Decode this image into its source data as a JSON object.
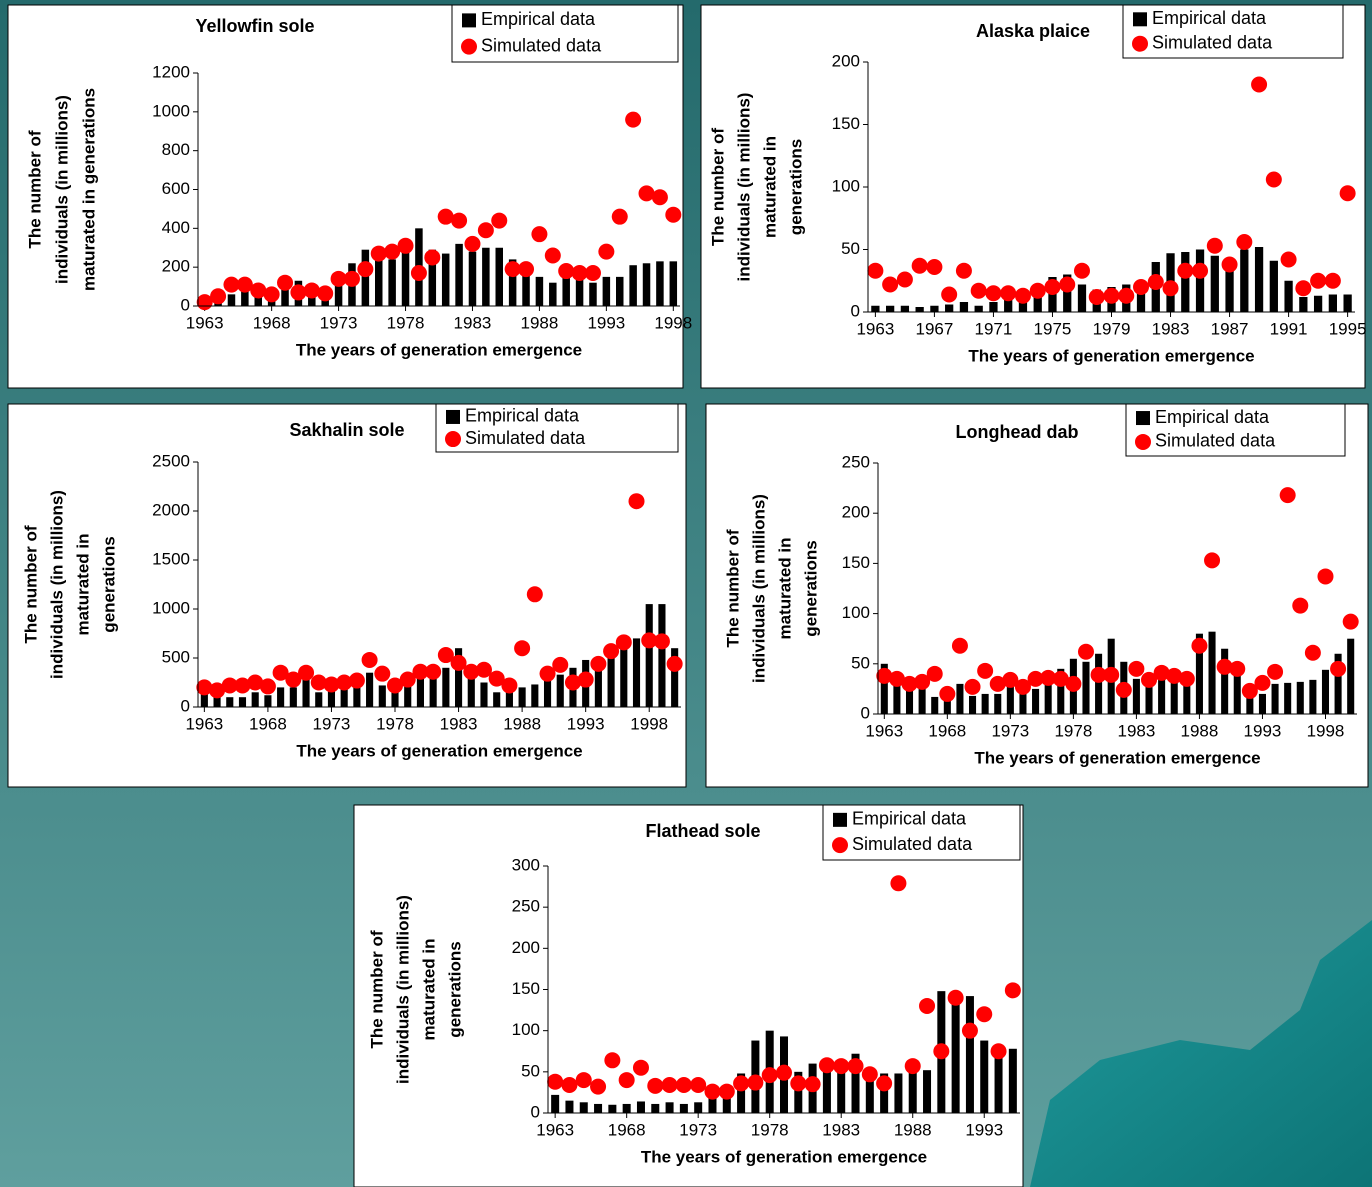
{
  "chart_data": [
    {
      "type": "combo",
      "title": "Yellowfin sole",
      "xlabel": "The years of generation emergence",
      "ylabel": [
        "The number of",
        "individuals (in millions)",
        "maturated in generations"
      ],
      "x": [
        1963,
        1964,
        1965,
        1966,
        1967,
        1968,
        1969,
        1970,
        1971,
        1972,
        1973,
        1974,
        1975,
        1976,
        1977,
        1978,
        1979,
        1980,
        1981,
        1982,
        1983,
        1984,
        1985,
        1986,
        1987,
        1988,
        1989,
        1990,
        1991,
        1992,
        1993,
        1994,
        1995,
        1996,
        1997,
        1998
      ],
      "series": [
        {
          "name": "Empirical data",
          "color": "#000000",
          "mark": "bar",
          "values": [
            20,
            40,
            60,
            80,
            50,
            50,
            90,
            130,
            90,
            70,
            120,
            220,
            290,
            280,
            240,
            300,
            400,
            290,
            270,
            320,
            280,
            300,
            300,
            240,
            200,
            150,
            120,
            150,
            160,
            120,
            150,
            150,
            210,
            220,
            230,
            230
          ]
        },
        {
          "name": "Simulated data",
          "color": "#ff0000",
          "mark": "dot",
          "values": [
            20,
            50,
            110,
            110,
            80,
            60,
            120,
            70,
            80,
            65,
            140,
            140,
            190,
            270,
            280,
            310,
            170,
            250,
            460,
            440,
            320,
            390,
            440,
            190,
            190,
            370,
            260,
            180,
            170,
            170,
            280,
            460,
            960,
            580,
            560,
            470
          ]
        }
      ],
      "xlim": [
        1962.5,
        1998.5
      ],
      "xticks": [
        1963,
        1968,
        1973,
        1978,
        1983,
        1988,
        1993,
        1998
      ],
      "ylim": [
        0,
        1200
      ],
      "yticks": [
        0,
        200,
        400,
        600,
        800,
        1000,
        1200
      ],
      "legend": "top-right"
    },
    {
      "type": "combo",
      "title": "Alaska plaice",
      "xlabel": "The years of generation emergence",
      "ylabel": [
        "The number of",
        "individuals (in millions)",
        "maturated in",
        "generations"
      ],
      "x": [
        1963,
        1964,
        1965,
        1966,
        1967,
        1968,
        1969,
        1970,
        1971,
        1972,
        1973,
        1974,
        1975,
        1976,
        1977,
        1978,
        1979,
        1980,
        1981,
        1982,
        1983,
        1984,
        1985,
        1986,
        1987,
        1988,
        1989,
        1990,
        1991,
        1992,
        1993,
        1994,
        1995
      ],
      "series": [
        {
          "name": "Empirical data",
          "color": "#000000",
          "mark": "bar",
          "values": [
            5,
            5,
            5,
            4,
            5,
            6,
            8,
            5,
            8,
            10,
            12,
            20,
            28,
            30,
            22,
            18,
            20,
            22,
            25,
            40,
            47,
            48,
            50,
            45,
            40,
            50,
            52,
            41,
            25,
            12,
            13,
            14,
            14
          ]
        },
        {
          "name": "Simulated data",
          "color": "#ff0000",
          "mark": "dot",
          "values": [
            33,
            22,
            26,
            37,
            36,
            14,
            33,
            17,
            15,
            15,
            13,
            17,
            20,
            22,
            33,
            12,
            13,
            13,
            20,
            24,
            19,
            33,
            33,
            53,
            38,
            56,
            182,
            106,
            42,
            19,
            25,
            25,
            95
          ]
        }
      ],
      "xlim": [
        1962.5,
        1995.5
      ],
      "xticks": [
        1963,
        1967,
        1971,
        1975,
        1979,
        1983,
        1987,
        1991,
        1995
      ],
      "ylim": [
        0,
        200
      ],
      "yticks": [
        0,
        50,
        100,
        150,
        200
      ],
      "legend": "top-right"
    },
    {
      "type": "combo",
      "title": "Sakhalin sole",
      "xlabel": "The years of generation emergence",
      "ylabel": [
        "The number of",
        "individuals (in millions)",
        "maturated in",
        "generations"
      ],
      "x": [
        1963,
        1964,
        1965,
        1966,
        1967,
        1968,
        1969,
        1970,
        1971,
        1972,
        1973,
        1974,
        1975,
        1976,
        1977,
        1978,
        1979,
        1980,
        1981,
        1982,
        1983,
        1984,
        1985,
        1986,
        1987,
        1988,
        1989,
        1990,
        1991,
        1992,
        1993,
        1994,
        1995,
        1996,
        1997,
        1998,
        1999,
        2000
      ],
      "series": [
        {
          "name": "Empirical data",
          "color": "#000000",
          "mark": "bar",
          "values": [
            150,
            100,
            100,
            100,
            150,
            120,
            200,
            200,
            300,
            150,
            180,
            200,
            250,
            350,
            220,
            200,
            250,
            300,
            300,
            400,
            600,
            350,
            250,
            150,
            160,
            200,
            230,
            300,
            330,
            400,
            480,
            500,
            500,
            600,
            700,
            1050,
            1050,
            600
          ]
        },
        {
          "name": "Simulated data",
          "color": "#ff0000",
          "mark": "dot",
          "values": [
            200,
            170,
            220,
            220,
            250,
            210,
            350,
            280,
            350,
            250,
            230,
            250,
            270,
            480,
            340,
            220,
            280,
            360,
            360,
            530,
            450,
            360,
            380,
            290,
            220,
            600,
            1150,
            340,
            430,
            250,
            280,
            440,
            570,
            660,
            2100,
            680,
            670,
            440
          ]
        }
      ],
      "xlim": [
        1962.5,
        2000.5
      ],
      "xticks": [
        1963,
        1968,
        1973,
        1978,
        1983,
        1988,
        1993,
        1998
      ],
      "ylim": [
        0,
        2500
      ],
      "yticks": [
        0,
        500,
        1000,
        1500,
        2000,
        2500
      ],
      "legend": "top-right"
    },
    {
      "type": "combo",
      "title": "Longhead dab",
      "xlabel": "The years of generation emergence",
      "ylabel": [
        "The number of",
        "individuals (in millions)",
        "maturated in",
        "generations"
      ],
      "x": [
        1963,
        1964,
        1965,
        1966,
        1967,
        1968,
        1969,
        1970,
        1971,
        1972,
        1973,
        1974,
        1975,
        1976,
        1977,
        1978,
        1979,
        1980,
        1981,
        1982,
        1983,
        1984,
        1985,
        1986,
        1987,
        1988,
        1989,
        1990,
        1991,
        1992,
        1993,
        1994,
        1995,
        1996,
        1997,
        1998,
        1999,
        2000
      ],
      "series": [
        {
          "name": "Empirical data",
          "color": "#000000",
          "mark": "bar",
          "values": [
            50,
            30,
            25,
            28,
            17,
            15,
            30,
            18,
            20,
            20,
            30,
            32,
            25,
            40,
            45,
            55,
            52,
            60,
            75,
            52,
            35,
            30,
            40,
            35,
            32,
            80,
            82,
            65,
            45,
            30,
            20,
            30,
            31,
            32,
            34,
            44,
            60,
            75
          ]
        },
        {
          "name": "Simulated data",
          "color": "#ff0000",
          "mark": "dot",
          "values": [
            38,
            35,
            30,
            32,
            40,
            20,
            68,
            27,
            43,
            30,
            34,
            27,
            35,
            36,
            35,
            30,
            62,
            39,
            39,
            24,
            45,
            34,
            41,
            38,
            35,
            68,
            153,
            47,
            45,
            23,
            31,
            42,
            218,
            108,
            61,
            137,
            45,
            92
          ]
        }
      ],
      "xlim": [
        1962.5,
        2000.5
      ],
      "xticks": [
        1963,
        1968,
        1973,
        1978,
        1983,
        1988,
        1993,
        1998
      ],
      "ylim": [
        0,
        250
      ],
      "yticks": [
        0,
        50,
        100,
        150,
        200,
        250
      ],
      "legend": "top-right"
    },
    {
      "type": "combo",
      "title": "Flathead sole",
      "xlabel": "The years of generation emergence",
      "ylabel": [
        "The number of",
        "individuals (in millions)",
        "maturated in",
        "generations"
      ],
      "x": [
        1963,
        1964,
        1965,
        1966,
        1967,
        1968,
        1969,
        1970,
        1971,
        1972,
        1973,
        1974,
        1975,
        1976,
        1977,
        1978,
        1979,
        1980,
        1981,
        1982,
        1983,
        1984,
        1985,
        1986,
        1987,
        1988,
        1989,
        1990,
        1991,
        1992,
        1993,
        1994,
        1995
      ],
      "series": [
        {
          "name": "Empirical data",
          "color": "#000000",
          "mark": "bar",
          "values": [
            22,
            15,
            13,
            11,
            10,
            11,
            14,
            11,
            13,
            11,
            13,
            18,
            20,
            48,
            88,
            100,
            93,
            50,
            60,
            62,
            65,
            72,
            48,
            48,
            48,
            52,
            52,
            148,
            142,
            142,
            88,
            80,
            78
          ]
        },
        {
          "name": "Simulated data",
          "color": "#ff0000",
          "mark": "dot",
          "values": [
            38,
            34,
            40,
            32,
            64,
            40,
            55,
            33,
            34,
            34,
            34,
            26,
            26,
            36,
            37,
            46,
            49,
            36,
            35,
            58,
            57,
            57,
            47,
            36,
            279,
            57,
            130,
            75,
            140,
            100,
            120,
            75,
            149
          ]
        }
      ],
      "xlim": [
        1962.5,
        1995.5
      ],
      "xticks": [
        1963,
        1968,
        1973,
        1978,
        1983,
        1988,
        1993
      ],
      "ylim": [
        0,
        300
      ],
      "yticks": [
        0,
        50,
        100,
        150,
        200,
        250,
        300
      ],
      "legend": "top-right"
    }
  ]
}
